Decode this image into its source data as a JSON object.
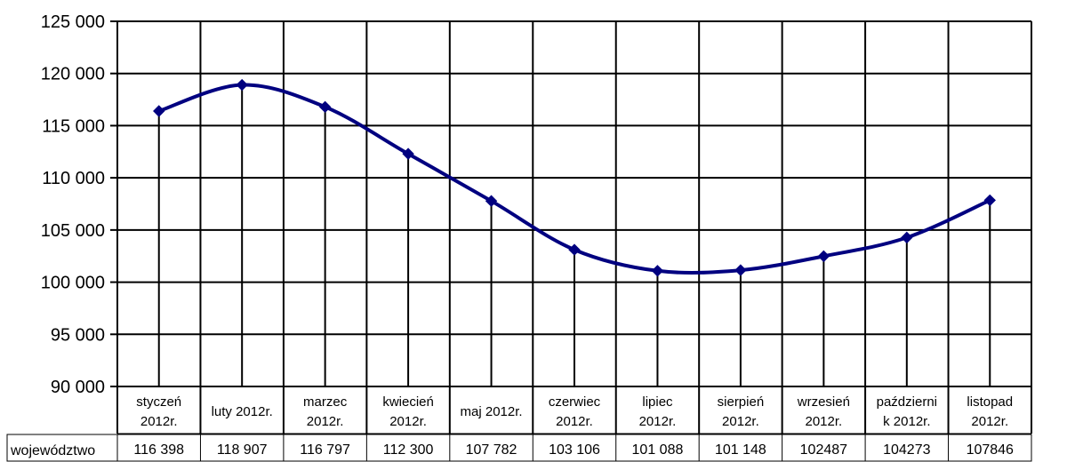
{
  "chart_data": {
    "type": "line",
    "title": "",
    "xlabel": "",
    "ylabel": "",
    "ylim": [
      90000,
      125000
    ],
    "yticks": [
      "90 000",
      "95 000",
      "100 000",
      "105 000",
      "110 000",
      "115 000",
      "120 000",
      "125 000"
    ],
    "ytick_values": [
      90000,
      95000,
      100000,
      105000,
      110000,
      115000,
      120000,
      125000
    ],
    "categories": [
      [
        "styczeń",
        "2012r."
      ],
      [
        "luty 2012r."
      ],
      [
        "marzec",
        "2012r."
      ],
      [
        "kwiecień",
        "2012r."
      ],
      [
        "maj 2012r."
      ],
      [
        "czerwiec",
        "2012r."
      ],
      [
        "lipiec",
        "2012r."
      ],
      [
        "sierpień",
        "2012r."
      ],
      [
        "wrzesień",
        "2012r."
      ],
      [
        "październi",
        "k 2012r."
      ],
      [
        "listopad",
        "2012r."
      ]
    ],
    "series": [
      {
        "name": "województwo",
        "values": [
          116398,
          118907,
          116797,
          112300,
          107782,
          103106,
          101088,
          101148,
          102487,
          104273,
          107846
        ],
        "labels": [
          "116 398",
          "118 907",
          "116 797",
          "112 300",
          "107 782",
          "103 106",
          "101 088",
          "101 148",
          "102487",
          "104273",
          "107846"
        ],
        "color": "#000080"
      }
    ],
    "grid": true,
    "legend": "data-table-below"
  }
}
